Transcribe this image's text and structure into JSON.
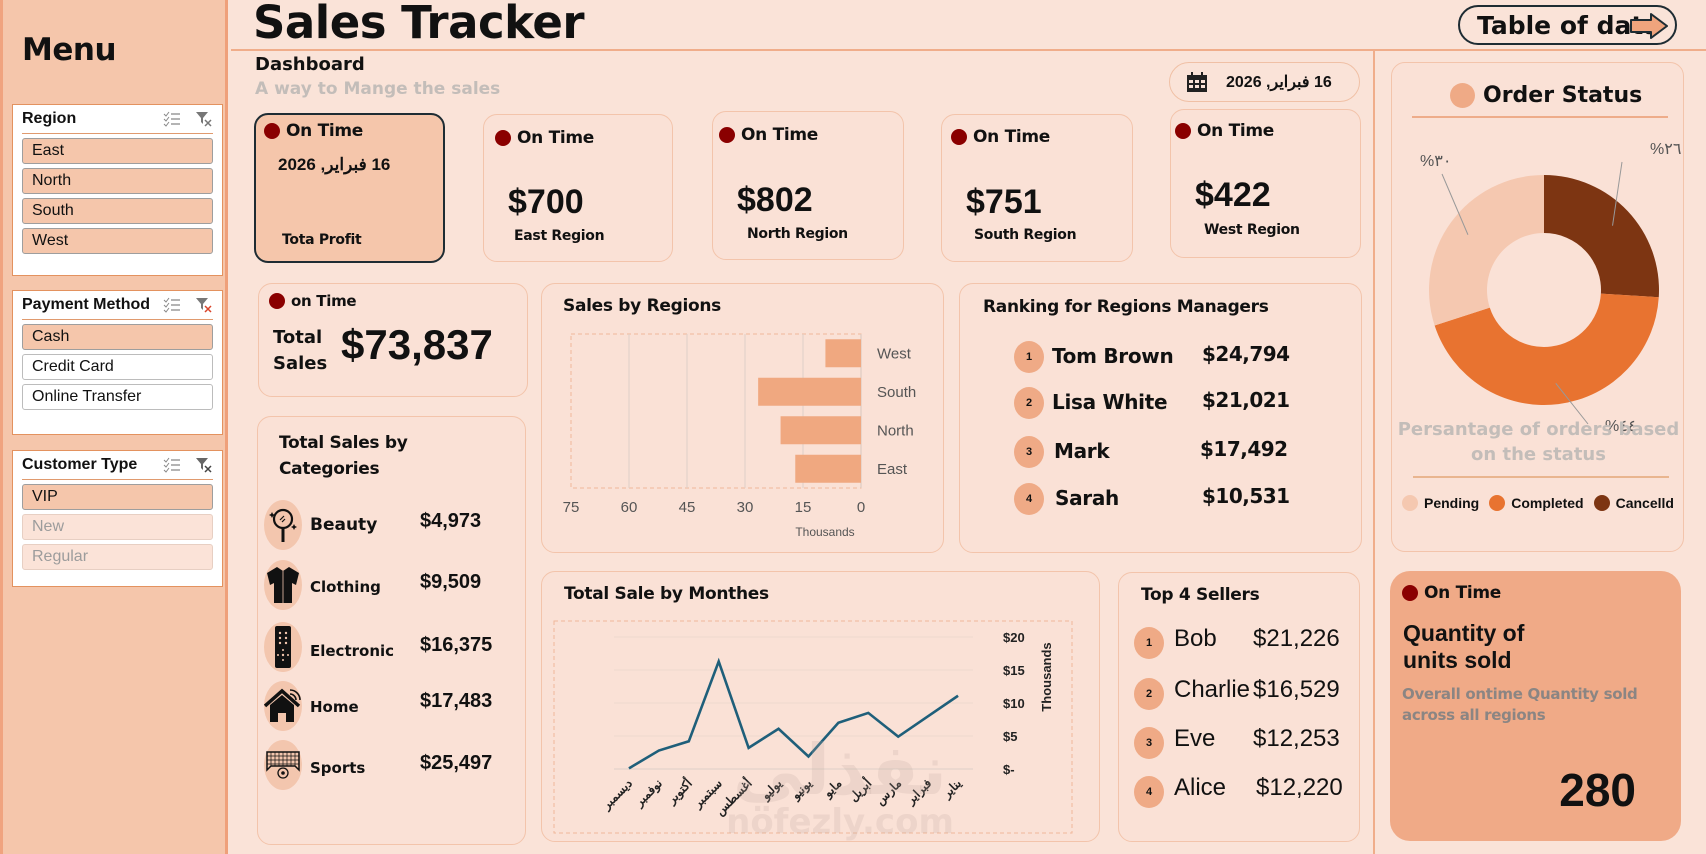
{
  "sidebar": {
    "menu_title": "Menu",
    "slicers": [
      {
        "title": "Region",
        "items": [
          {
            "label": "East",
            "state": "selected"
          },
          {
            "label": "North",
            "state": "selected"
          },
          {
            "label": "South",
            "state": "selected"
          },
          {
            "label": "West",
            "state": "selected"
          }
        ]
      },
      {
        "title": "Payment Method",
        "items": [
          {
            "label": "Cash",
            "state": "selected"
          },
          {
            "label": "Credit Card",
            "state": "normal"
          },
          {
            "label": "Online Transfer",
            "state": "normal"
          }
        ]
      },
      {
        "title": "Customer Type",
        "items": [
          {
            "label": "VIP",
            "state": "selected"
          },
          {
            "label": "New",
            "state": "dim"
          },
          {
            "label": "Regular",
            "state": "dim"
          }
        ]
      }
    ],
    "multiselect_icon": "multi-select-icon",
    "clear_filter_icon": "clear-filter-icon"
  },
  "header": {
    "title": "Sales Tracker",
    "dashboard_label": "Dashboard",
    "subtitle": "A way to Mange the sales",
    "table_button": "Table of data",
    "date": "16 فبراير, 2026"
  },
  "kpis": {
    "profit": {
      "status": "On Time",
      "date": "16 فبراير, 2026",
      "label": "Tota Profit"
    },
    "regions": [
      {
        "status": "On Time",
        "value": "$700",
        "label": "East Region"
      },
      {
        "status": "On Time",
        "value": "$802",
        "label": "North Region"
      },
      {
        "status": "On Time",
        "value": "$751",
        "label": "South Region"
      },
      {
        "status": "On Time",
        "value": "$422",
        "label": "West Region"
      }
    ],
    "total_sales": {
      "status": "on Time",
      "label_line1": "Total",
      "label_line2": "Sales",
      "value": "$73,837"
    }
  },
  "categories": {
    "title_line1": "Total Sales by",
    "title_line2": "Categories",
    "items": [
      {
        "name": "Beauty",
        "value": "$4,973",
        "icon": "beauty-mirror-icon"
      },
      {
        "name": "Clothing",
        "value": "$9,509",
        "icon": "shirt-icon"
      },
      {
        "name": "Electronic",
        "value": "$16,375",
        "icon": "remote-control-icon"
      },
      {
        "name": "Home",
        "value": "$17,483",
        "icon": "smart-home-icon"
      },
      {
        "name": "Sports",
        "value": "$25,497",
        "icon": "soccer-goal-icon"
      }
    ]
  },
  "ranking": {
    "title": "Ranking for Regions Managers",
    "items": [
      {
        "rank": "1",
        "name": "Tom Brown",
        "value": "$24,794"
      },
      {
        "rank": "2",
        "name": "Lisa White",
        "value": "$21,021"
      },
      {
        "rank": "3",
        "name": "Mark",
        "value": "$17,492"
      },
      {
        "rank": "4",
        "name": "Sarah",
        "value": "$10,531"
      }
    ]
  },
  "sellers": {
    "title": "Top 4 Sellers",
    "items": [
      {
        "rank": "1",
        "name": "Bob",
        "value": "$21,226"
      },
      {
        "rank": "2",
        "name": "Charlie",
        "value": "$16,529"
      },
      {
        "rank": "3",
        "name": "Eve",
        "value": "$12,253"
      },
      {
        "rank": "4",
        "name": "Alice",
        "value": "$12,220"
      }
    ]
  },
  "order_status": {
    "title": "Order Status",
    "caption": "Persantage of orders based on the status",
    "caption_line1": "Persantage of orders based",
    "caption_line2": "on the status"
  },
  "quantity": {
    "status": "On Time",
    "title_line1": "Quantity of",
    "title_line2": "units sold",
    "desc_line1": "Overall ontime Quantity sold",
    "desc_line2": "across all regions",
    "value": "280"
  },
  "watermark": {
    "arabic": "نفذلي",
    "latin": "nofezly.com"
  },
  "colors": {
    "accent": "#f0aa87",
    "status_dot": "#8a0000",
    "line": "#1f5f7a",
    "pending": "#f5c8b0",
    "completed": "#e87330",
    "cancelled": "#7d3512"
  },
  "chart_data": [
    {
      "type": "bar",
      "orientation": "horizontal",
      "title": "Sales by Regions",
      "categories": [
        "West",
        "South",
        "North",
        "East"
      ],
      "values": [
        9.2,
        26.6,
        20.8,
        17.0
      ],
      "xlabel": "Thousands",
      "xlim": [
        0,
        75
      ],
      "x_reversed": true,
      "xticks": [
        "75",
        "60",
        "45",
        "30",
        "15",
        "0"
      ],
      "grid": true
    },
    {
      "type": "line",
      "title": "Total Sale by Monthes",
      "x": [
        "ديسمبر",
        "نوفمبر",
        "أكتوبر",
        "سبتمبر",
        "أغسطس",
        "يوليو",
        "يونيو",
        "مايو",
        "أبريل",
        "مارس",
        "فبراير",
        "يناير"
      ],
      "values": [
        0.1,
        2.8,
        4.2,
        16.3,
        3.2,
        6.1,
        1.9,
        7.0,
        8.5,
        4.9,
        8.0,
        11.1
      ],
      "ylabel": "Thousands",
      "ylim": [
        0,
        20
      ],
      "yticks": [
        "$-",
        "$5",
        "$10",
        "$15",
        "$20"
      ],
      "grid": true
    },
    {
      "type": "pie",
      "variant": "donut",
      "title": "Order Status",
      "categories": [
        "Cancelld",
        "Completed",
        "Pending"
      ],
      "values": [
        26,
        44,
        30
      ],
      "data_labels": [
        "%٢٦",
        "%٤٤",
        "%٣٠"
      ],
      "legend": [
        "Pending",
        "Completed",
        "Cancelld"
      ],
      "legend_placement": "bottom"
    }
  ]
}
